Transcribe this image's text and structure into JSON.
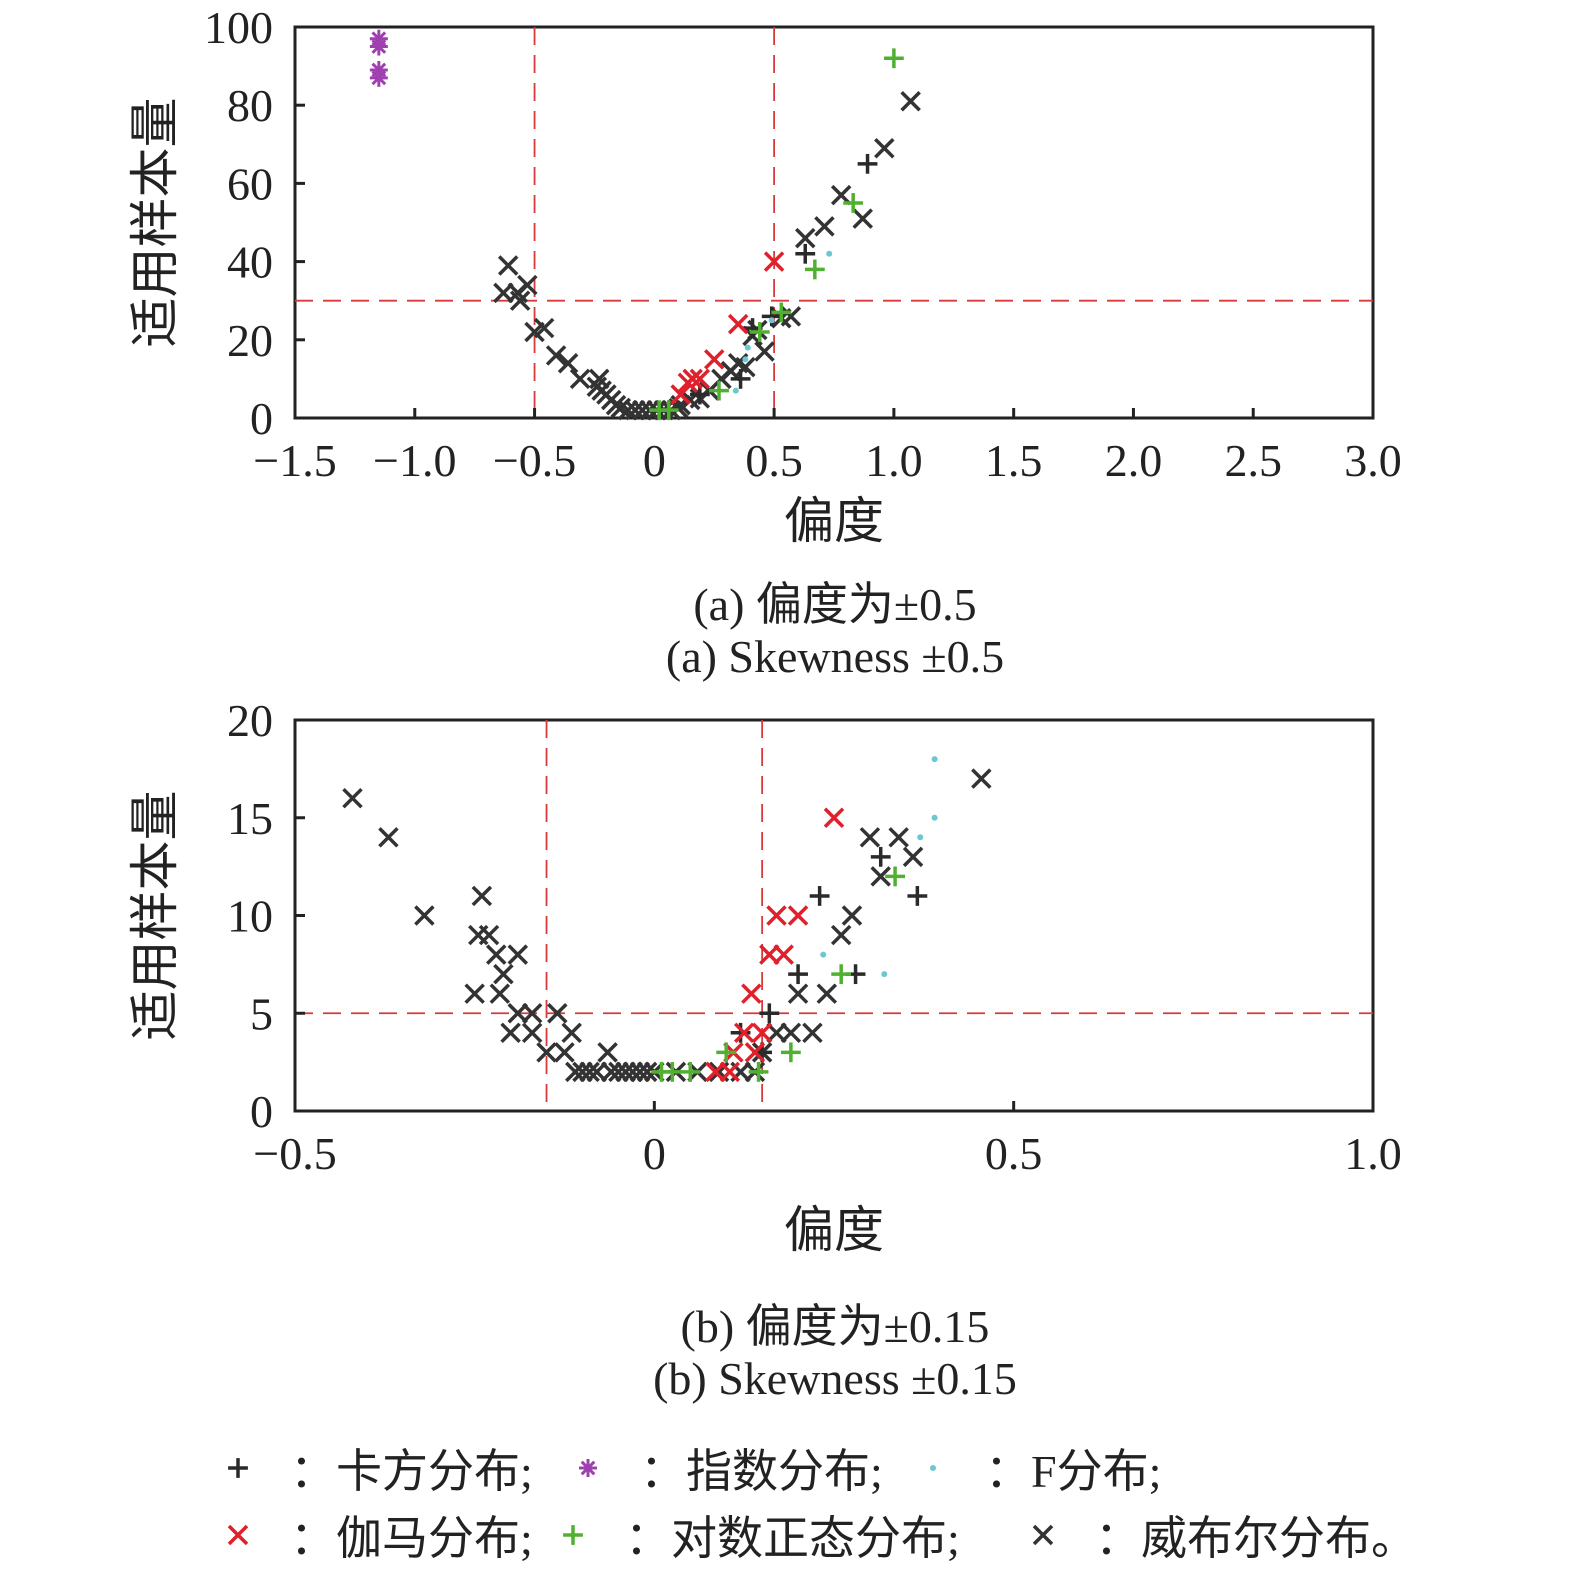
{
  "colors": {
    "chi": "#2a2a2a",
    "exp": "#a040b0",
    "f": "#6cc8d0",
    "gamma": "#e0202a",
    "lognormal": "#50b030",
    "weibull": "#333333",
    "ref": "#d83a3a"
  },
  "chart_data": [
    {
      "type": "scatter",
      "id": "a",
      "xlabel": "偏度",
      "ylabel": "适用样本量",
      "xlim": [
        -1.5,
        3.0
      ],
      "ylim": [
        0,
        100
      ],
      "xticks": [
        -1.5,
        -1.0,
        -0.5,
        0,
        0.5,
        1.0,
        1.5,
        2.0,
        2.5,
        3.0
      ],
      "xticklabels": [
        "−1.5",
        "−1.0",
        "−0.5",
        "0",
        "0.5",
        "1.0",
        "1.5",
        "2.0",
        "2.5",
        "3.0"
      ],
      "yticks": [
        0,
        20,
        40,
        60,
        80,
        100
      ],
      "yticklabels": [
        "0",
        "20",
        "40",
        "60",
        "80",
        "100"
      ],
      "refx": [
        -0.5,
        0.5
      ],
      "refy": [
        30
      ],
      "caption_cn": "(a) 偏度为±0.5",
      "caption_en": "(a) Skewness ±0.5",
      "series": [
        {
          "name": "weibull",
          "points": [
            [
              -0.61,
              39
            ],
            [
              -0.63,
              32
            ],
            [
              -0.57,
              32
            ],
            [
              -0.53,
              34
            ],
            [
              -0.56,
              30
            ],
            [
              -0.5,
              22
            ],
            [
              -0.46,
              23
            ],
            [
              -0.41,
              16
            ],
            [
              -0.36,
              14
            ],
            [
              -0.31,
              10
            ],
            [
              -0.23,
              10
            ],
            [
              -0.24,
              8
            ],
            [
              -0.22,
              7
            ],
            [
              -0.2,
              6
            ],
            [
              -0.18,
              4.6
            ],
            [
              -0.16,
              3.3
            ],
            [
              -0.14,
              2.6
            ],
            [
              -0.11,
              2
            ],
            [
              -0.08,
              2
            ],
            [
              -0.05,
              2
            ],
            [
              -0.02,
              2
            ],
            [
              0.01,
              2
            ],
            [
              0.04,
              2
            ],
            [
              0.07,
              2
            ],
            [
              0.1,
              2.5
            ],
            [
              0.11,
              3.3
            ],
            [
              0.15,
              4.6
            ],
            [
              0.19,
              5
            ],
            [
              0.23,
              7
            ],
            [
              0.28,
              10
            ],
            [
              0.32,
              12
            ],
            [
              0.35,
              14
            ],
            [
              0.38,
              13
            ],
            [
              0.41,
              21
            ],
            [
              0.43,
              22.5
            ],
            [
              0.46,
              17
            ],
            [
              0.53,
              25.5
            ],
            [
              0.57,
              26
            ],
            [
              0.63,
              46
            ],
            [
              0.71,
              49
            ],
            [
              0.78,
              57
            ],
            [
              0.87,
              51
            ],
            [
              0.96,
              69
            ],
            [
              1.07,
              81
            ]
          ]
        },
        {
          "name": "chi",
          "points": [
            [
              0.19,
              6
            ],
            [
              0.36,
              10
            ],
            [
              0.41,
              23
            ],
            [
              0.49,
              26
            ],
            [
              0.63,
              42
            ],
            [
              0.89,
              65
            ]
          ]
        },
        {
          "name": "gamma",
          "points": [
            [
              0.11,
              6
            ],
            [
              0.14,
              9
            ],
            [
              0.16,
              10
            ],
            [
              0.19,
              10
            ],
            [
              0.25,
              15
            ],
            [
              0.35,
              24
            ],
            [
              0.5,
              40
            ]
          ]
        },
        {
          "name": "f",
          "points": [
            [
              0.34,
              7
            ],
            [
              0.38,
              15
            ],
            [
              0.39,
              18
            ],
            [
              0.49,
              25
            ],
            [
              0.73,
              42
            ]
          ]
        },
        {
          "name": "lognormal",
          "points": [
            [
              0.02,
              2
            ],
            [
              0.06,
              2
            ],
            [
              0.27,
              7
            ],
            [
              0.44,
              22
            ],
            [
              0.53,
              27
            ],
            [
              0.67,
              38
            ],
            [
              0.83,
              55
            ],
            [
              1.0,
              92
            ]
          ]
        },
        {
          "name": "exp",
          "points": [
            [
              -1.15,
              97
            ],
            [
              -1.15,
              95
            ],
            [
              -1.15,
              89
            ],
            [
              -1.15,
              87
            ]
          ]
        }
      ]
    },
    {
      "type": "scatter",
      "id": "b",
      "xlabel": "偏度",
      "ylabel": "适用样本量",
      "xlim": [
        -0.5,
        1.0
      ],
      "ylim": [
        0,
        20
      ],
      "xticks": [
        -0.5,
        0,
        0.5,
        1.0
      ],
      "xticklabels": [
        "−0.5",
        "0",
        "0.5",
        "1.0"
      ],
      "yticks": [
        0,
        5,
        10,
        15,
        20
      ],
      "yticklabels": [
        "0",
        "5",
        "10",
        "15",
        "20"
      ],
      "refx": [
        -0.15,
        0.15
      ],
      "refy": [
        5
      ],
      "caption_cn": "(b) 偏度为±0.15",
      "caption_en": "(b) Skewness ±0.15",
      "series": [
        {
          "name": "weibull",
          "points": [
            [
              -0.42,
              16
            ],
            [
              -0.37,
              14
            ],
            [
              -0.32,
              10
            ],
            [
              -0.24,
              11
            ],
            [
              -0.245,
              9
            ],
            [
              -0.23,
              9
            ],
            [
              -0.22,
              8
            ],
            [
              -0.19,
              8
            ],
            [
              -0.21,
              7
            ],
            [
              -0.25,
              6
            ],
            [
              -0.215,
              6
            ],
            [
              -0.19,
              5
            ],
            [
              -0.17,
              5
            ],
            [
              -0.135,
              5
            ],
            [
              -0.2,
              4
            ],
            [
              -0.17,
              4
            ],
            [
              -0.115,
              4
            ],
            [
              -0.15,
              3
            ],
            [
              -0.125,
              3
            ],
            [
              -0.065,
              3
            ],
            [
              -0.11,
              2
            ],
            [
              -0.1,
              2
            ],
            [
              -0.09,
              2
            ],
            [
              -0.08,
              2
            ],
            [
              -0.06,
              2
            ],
            [
              -0.05,
              2
            ],
            [
              -0.04,
              2
            ],
            [
              -0.03,
              2
            ],
            [
              -0.02,
              2
            ],
            [
              -0.01,
              2
            ],
            [
              0,
              2
            ],
            [
              0.03,
              2
            ],
            [
              0.06,
              2
            ],
            [
              0.09,
              2
            ],
            [
              0.12,
              2
            ],
            [
              0.14,
              2
            ],
            [
              0.15,
              3
            ],
            [
              0.17,
              4
            ],
            [
              0.19,
              4
            ],
            [
              0.22,
              4
            ],
            [
              0.2,
              6
            ],
            [
              0.24,
              6
            ],
            [
              0.26,
              9
            ],
            [
              0.275,
              10
            ],
            [
              0.3,
              14
            ],
            [
              0.315,
              12
            ],
            [
              0.34,
              14
            ],
            [
              0.36,
              13
            ],
            [
              0.455,
              17
            ]
          ]
        },
        {
          "name": "chi",
          "points": [
            [
              0.15,
              3
            ],
            [
              0.12,
              4
            ],
            [
              0.16,
              5
            ],
            [
              0.2,
              7
            ],
            [
              0.23,
              11
            ],
            [
              0.28,
              7
            ],
            [
              0.315,
              13
            ],
            [
              0.366,
              11
            ]
          ]
        },
        {
          "name": "gamma",
          "points": [
            [
              0.085,
              2
            ],
            [
              0.105,
              2
            ],
            [
              0.11,
              3
            ],
            [
              0.14,
              3
            ],
            [
              0.125,
              4
            ],
            [
              0.15,
              4
            ],
            [
              0.135,
              6
            ],
            [
              0.16,
              8
            ],
            [
              0.18,
              8
            ],
            [
              0.17,
              10
            ],
            [
              0.2,
              10
            ],
            [
              0.25,
              15
            ]
          ]
        },
        {
          "name": "f",
          "points": [
            [
              0.235,
              8
            ],
            [
              0.32,
              7
            ],
            [
              0.37,
              14
            ],
            [
              0.39,
              15
            ],
            [
              0.39,
              18
            ]
          ]
        },
        {
          "name": "lognormal",
          "points": [
            [
              0.01,
              2
            ],
            [
              0.025,
              2
            ],
            [
              0.05,
              2
            ],
            [
              0.145,
              2
            ],
            [
              0.1,
              3
            ],
            [
              0.19,
              3
            ],
            [
              0.26,
              7
            ],
            [
              0.335,
              12
            ]
          ]
        }
      ]
    }
  ],
  "legend": [
    {
      "name": "chi",
      "label": "：卡方分布;"
    },
    {
      "name": "exp",
      "label": "：指数分布;"
    },
    {
      "name": "f",
      "label": "：F分布;"
    },
    {
      "name": "gamma",
      "label": "：伽马分布;"
    },
    {
      "name": "lognormal",
      "label": "：对数正态分布;"
    },
    {
      "name": "weibull",
      "label": "：威布尔分布。"
    }
  ]
}
